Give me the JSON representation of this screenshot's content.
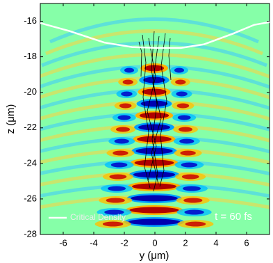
{
  "chart_data": {
    "type": "line",
    "xlabel": "y (μm)",
    "ylabel": "z (μm)",
    "xlim": [
      -7.5,
      7.5
    ],
    "ylim": [
      -28,
      -15
    ],
    "xticks": [
      -6,
      -4,
      -2,
      0,
      2,
      4,
      6
    ],
    "yticks": [
      -16,
      -18,
      -20,
      -22,
      -24,
      -26,
      -28
    ],
    "annotation": "t = 60 fs",
    "series": [
      {
        "name": "Critical Density",
        "color": "#ffffff",
        "x": [
          -7.5,
          -5.6,
          -3.3,
          -1.5,
          0.1,
          1.7,
          3.2,
          5.1,
          6.5,
          7.5
        ],
        "values": [
          -16.1,
          -16.55,
          -17.2,
          -17.45,
          -17.5,
          -17.5,
          -17.3,
          -16.7,
          -16.2,
          -16.05
        ]
      }
    ]
  }
}
